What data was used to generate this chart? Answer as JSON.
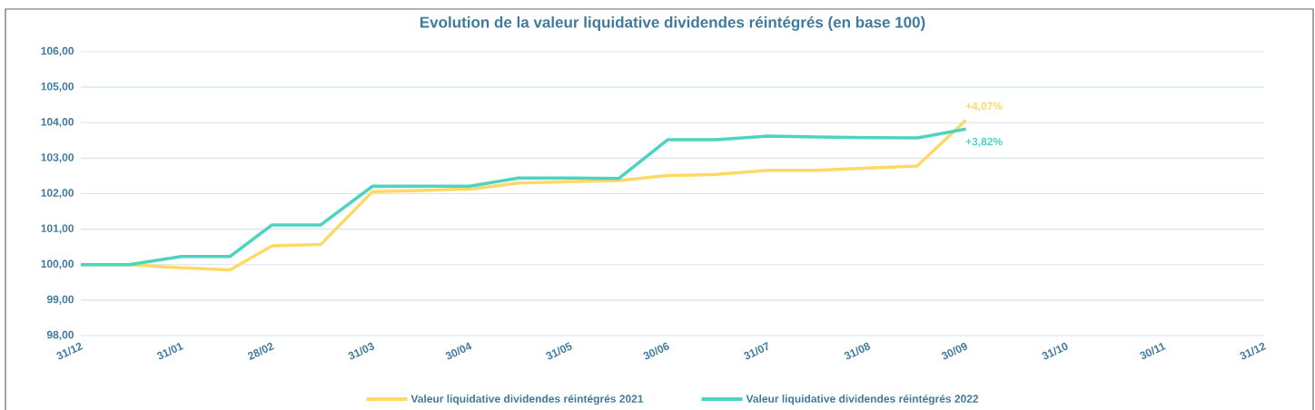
{
  "chart_data": {
    "type": "line",
    "title": "Evolution de la valeur liquidative dividendes réintégrés (en base 100)",
    "x": [
      "2021-12-31",
      "2022-01-15",
      "2022-01-31",
      "2022-02-15",
      "2022-02-28",
      "2022-03-15",
      "2022-03-31",
      "2022-04-15",
      "2022-04-30",
      "2022-05-15",
      "2022-05-31",
      "2022-06-15",
      "2022-06-30",
      "2022-07-15",
      "2022-07-31",
      "2022-08-15",
      "2022-08-31",
      "2022-09-15",
      "2022-09-30"
    ],
    "series": [
      {
        "name": "Valeur liquidative dividendes réintégrés 2021",
        "color": "#ffd966",
        "values": [
          100.0,
          100.0,
          99.91,
          99.85,
          100.53,
          100.57,
          102.06,
          102.09,
          102.13,
          102.3,
          102.34,
          102.37,
          102.51,
          102.54,
          102.66,
          102.66,
          102.72,
          102.78,
          104.07
        ]
      },
      {
        "name": "Valeur liquidative dividendes réintégrés 2022",
        "color": "#4dd4c0",
        "values": [
          100.0,
          100.0,
          100.23,
          100.23,
          101.12,
          101.12,
          102.21,
          102.21,
          102.21,
          102.44,
          102.44,
          102.43,
          103.52,
          103.52,
          103.62,
          103.6,
          103.58,
          103.57,
          103.82
        ]
      }
    ],
    "xlim": [
      "2021-12-31",
      "2022-12-31"
    ],
    "xticks": [
      {
        "value": "2021-12-31",
        "label": "31/12"
      },
      {
        "value": "2022-01-31",
        "label": "31/01"
      },
      {
        "value": "2022-02-28",
        "label": "28/02"
      },
      {
        "value": "2022-03-31",
        "label": "31/03"
      },
      {
        "value": "2022-04-30",
        "label": "30/04"
      },
      {
        "value": "2022-05-31",
        "label": "31/05"
      },
      {
        "value": "2022-06-30",
        "label": "30/06"
      },
      {
        "value": "2022-07-31",
        "label": "31/07"
      },
      {
        "value": "2022-08-31",
        "label": "31/08"
      },
      {
        "value": "2022-09-30",
        "label": "30/09"
      },
      {
        "value": "2022-10-31",
        "label": "31/10"
      },
      {
        "value": "2022-11-30",
        "label": "30/11"
      },
      {
        "value": "2022-12-31",
        "label": "31/12"
      }
    ],
    "ylim": [
      98,
      106
    ],
    "yticks": [
      {
        "value": 98,
        "label": "98,00"
      },
      {
        "value": 99,
        "label": "99,00"
      },
      {
        "value": 100,
        "label": "100,00"
      },
      {
        "value": 101,
        "label": "101,00"
      },
      {
        "value": 102,
        "label": "102,00"
      },
      {
        "value": 103,
        "label": "103,00"
      },
      {
        "value": 104,
        "label": "104,00"
      },
      {
        "value": 105,
        "label": "105,00"
      },
      {
        "value": 106,
        "label": "106,00"
      }
    ],
    "grid": "y",
    "legend": "bottom",
    "line_style": "solid",
    "annotations": [
      {
        "text": "+4,07%",
        "x": "2022-09-30",
        "y": 104.07
      },
      {
        "text": "+3,82%",
        "x": "2022-09-30",
        "y": 103.82
      }
    ]
  }
}
